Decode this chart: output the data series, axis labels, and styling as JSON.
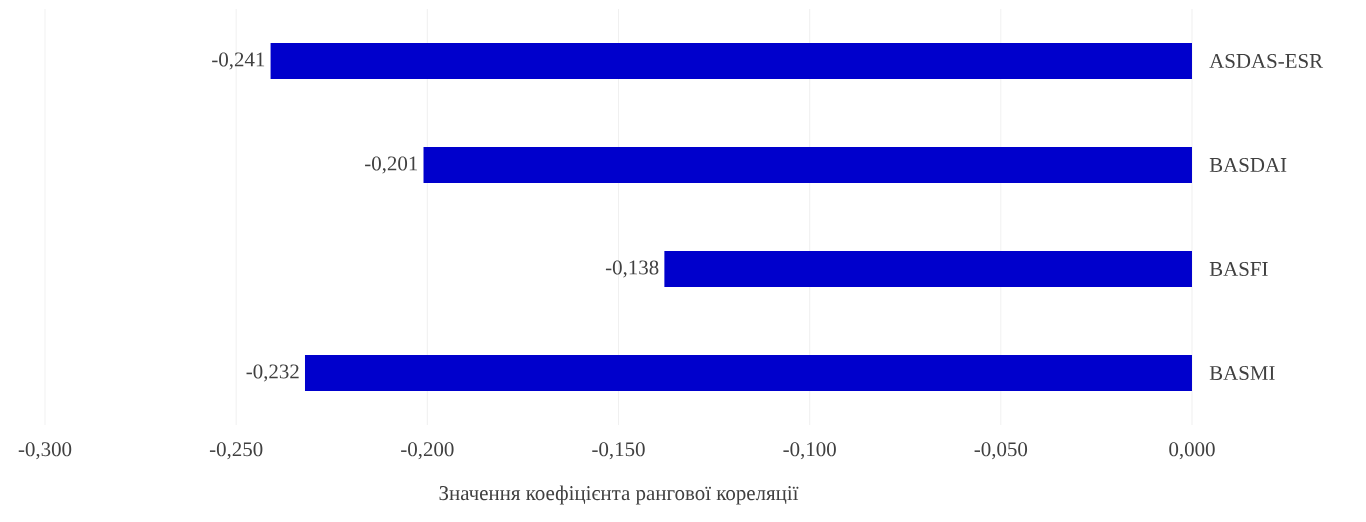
{
  "chart_data": {
    "type": "bar",
    "orientation": "horizontal",
    "categories": [
      "ASDAS-ESR",
      "BASDAI",
      "BASFI",
      "BASMI"
    ],
    "values": [
      -0.241,
      -0.201,
      -0.138,
      -0.232
    ],
    "value_labels": [
      "-0,241",
      "-0,201",
      "-0,138",
      "-0,232"
    ],
    "color": "#0000cc",
    "xlim": [
      -0.3,
      0
    ],
    "xticks": [
      {
        "value": -0.3,
        "label": "-0,300"
      },
      {
        "value": -0.25,
        "label": "-0,250"
      },
      {
        "value": -0.2,
        "label": "-0,200"
      },
      {
        "value": -0.15,
        "label": "-0,150"
      },
      {
        "value": -0.1,
        "label": "-0,100"
      },
      {
        "value": -0.05,
        "label": "-0,050"
      },
      {
        "value": 0,
        "label": "0,000"
      }
    ],
    "xlabel": "Значення коефіцієнта рангової кореляції",
    "grid": "x"
  }
}
